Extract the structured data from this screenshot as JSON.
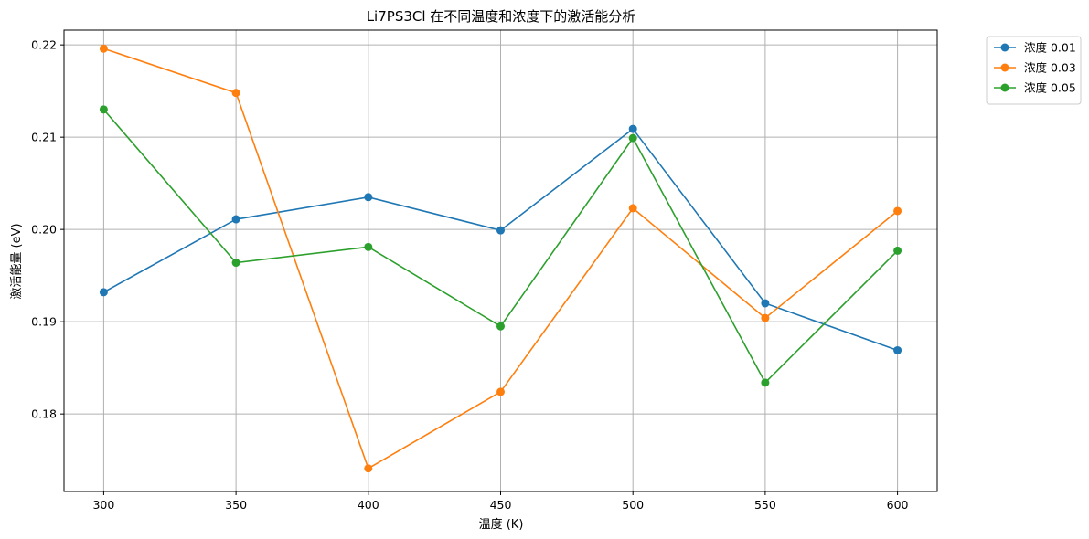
{
  "chart_data": {
    "type": "line",
    "title": "Li7PS3Cl 在不同温度和浓度下的激活能分析",
    "xlabel": "温度 (K)",
    "ylabel": "激活能量 (eV)",
    "x": [
      300,
      350,
      400,
      450,
      500,
      550,
      600
    ],
    "x_ticks": [
      "300",
      "350",
      "400",
      "450",
      "500",
      "550",
      "600"
    ],
    "y_ticks": [
      "0.18",
      "0.19",
      "0.20",
      "0.21",
      "0.22"
    ],
    "xlim": [
      285,
      615
    ],
    "ylim": [
      0.1716,
      0.2216
    ],
    "grid": true,
    "legend_position": "outside top-right",
    "series": [
      {
        "name": "浓度 0.01",
        "color": "#1f77b4",
        "values": [
          0.1932,
          0.2011,
          0.2035,
          0.1999,
          0.2109,
          0.192,
          0.1869
        ]
      },
      {
        "name": "浓度 0.03",
        "color": "#ff7f0e",
        "values": [
          0.2196,
          0.2148,
          0.1741,
          0.1824,
          0.2023,
          0.1904,
          0.202
        ]
      },
      {
        "name": "浓度 0.05",
        "color": "#2ca02c",
        "values": [
          0.213,
          0.1964,
          0.1981,
          0.1895,
          0.2099,
          0.1834,
          0.1977
        ]
      }
    ]
  }
}
